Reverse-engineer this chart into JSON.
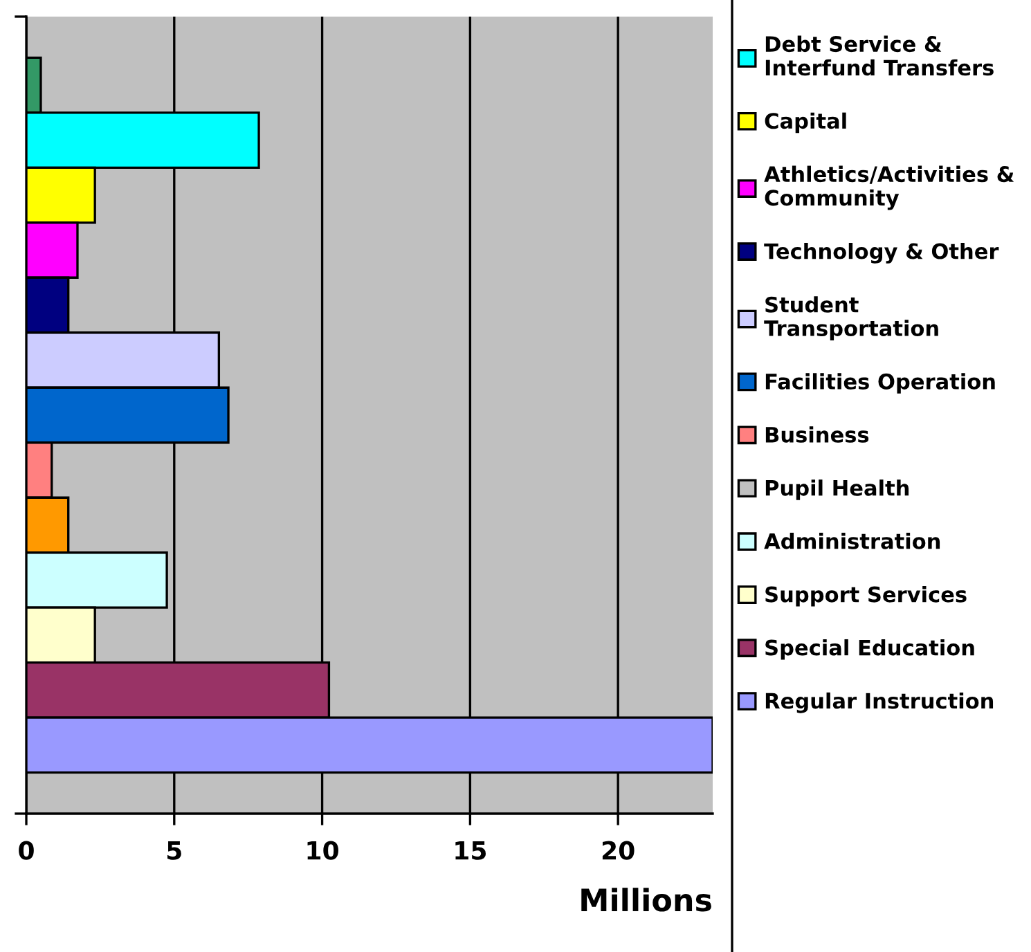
{
  "chart_data": {
    "type": "bar",
    "orientation": "horizontal",
    "xlabel": "Millions",
    "categories": [
      null
    ],
    "series": [
      {
        "color": "#339966",
        "values": [
          0.49
        ]
      },
      {
        "name": "Debt Service &\nInterfund Transfers",
        "color": "#00ffff",
        "values": [
          7.86
        ]
      },
      {
        "name": "Capital",
        "color": "#ffff00",
        "values": [
          2.32
        ]
      },
      {
        "name": "Athletics/Activities &\nCommunity",
        "color": "#ff00ff",
        "values": [
          1.73
        ]
      },
      {
        "name": "Technology & Other",
        "color": "#000080",
        "values": [
          1.42
        ]
      },
      {
        "name": "Student\nTransportation",
        "color": "#ccccff",
        "values": [
          6.51
        ]
      },
      {
        "name": "Facilities Operation",
        "color": "#0066cc",
        "values": [
          6.83
        ]
      },
      {
        "name": "Business",
        "color": "#ff8080",
        "values": [
          0.86
        ]
      },
      {
        "color": "#ff9900",
        "values": [
          1.42
        ]
      },
      {
        "name": "Pupil Health",
        "color": "#c0c0c0",
        "values": [
          null
        ]
      },
      {
        "name": "Administration",
        "color": "#ccffff",
        "values": [
          4.75
        ]
      },
      {
        "name": "Support Services",
        "color": "#ffffcc",
        "values": [
          2.32
        ]
      },
      {
        "name": "Special Education",
        "color": "#993366",
        "values": [
          10.23
        ]
      },
      {
        "name": "Regular Instruction",
        "color": "#9999ff",
        "values": [
          23.2
        ]
      }
    ],
    "xlim": [
      0,
      23.2
    ],
    "xticks": [
      0,
      5,
      10,
      15,
      20
    ],
    "grid": "x",
    "legend": "right"
  }
}
